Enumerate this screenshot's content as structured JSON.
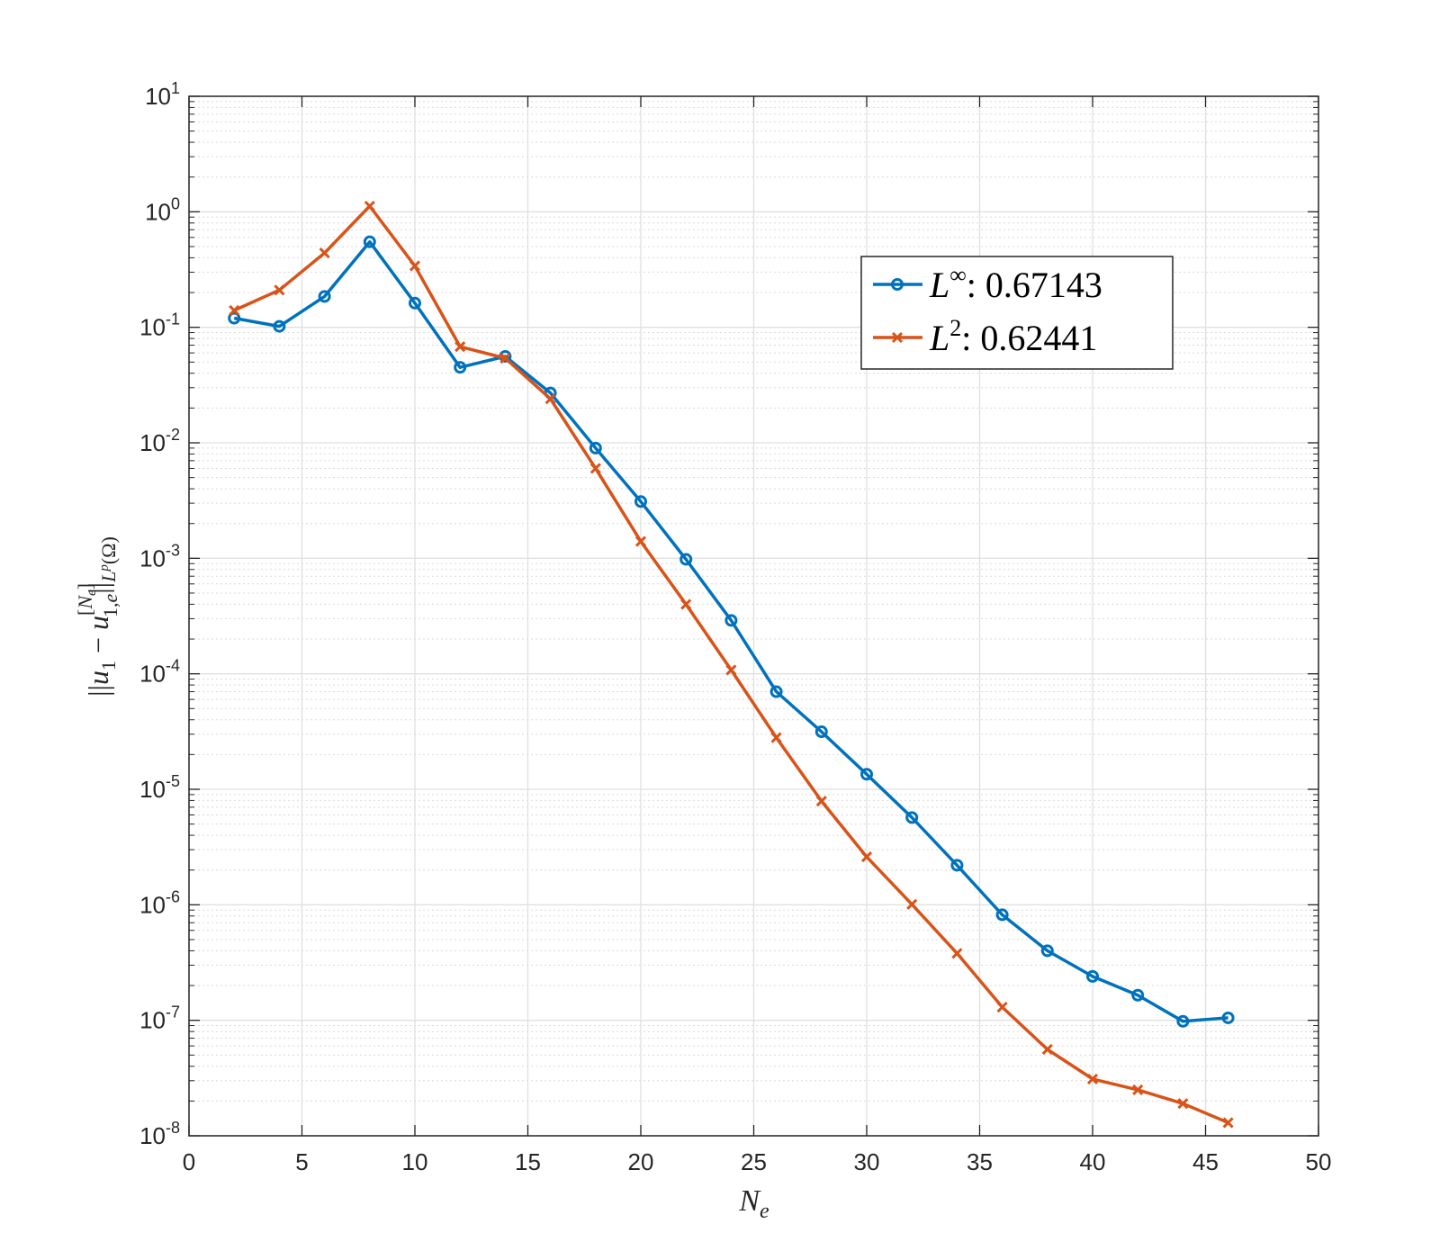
{
  "chart_data": {
    "type": "line",
    "title": "",
    "xlabel": "N_e",
    "ylabel": "||u_1 - u_{1,e}^{[N_e]}||_{L^p(Ω)}",
    "xlim": [
      0,
      50
    ],
    "ylim_log10": [
      -8,
      1
    ],
    "yscale": "log",
    "grid": true,
    "x_ticks": [
      "0",
      "5",
      "10",
      "15",
      "20",
      "25",
      "30",
      "35",
      "40",
      "45",
      "50"
    ],
    "y_ticks": [
      {
        "base": "10",
        "exp": "1"
      },
      {
        "base": "10",
        "exp": "0"
      },
      {
        "base": "10",
        "exp": "-1"
      },
      {
        "base": "10",
        "exp": "-2"
      },
      {
        "base": "10",
        "exp": "-3"
      },
      {
        "base": "10",
        "exp": "-4"
      },
      {
        "base": "10",
        "exp": "-5"
      },
      {
        "base": "10",
        "exp": "-6"
      },
      {
        "base": "10",
        "exp": "-7"
      },
      {
        "base": "10",
        "exp": "-8"
      }
    ],
    "legend_position": "top-right (inside)",
    "series": [
      {
        "name": "L^∞: 0.67143",
        "legend_base": "L",
        "legend_sup": "∞",
        "legend_value": ": 0.67143",
        "color": "#0072BD",
        "marker": "circle",
        "x": [
          2,
          4,
          6,
          8,
          10,
          12,
          14,
          16,
          18,
          20,
          22,
          24,
          26,
          28,
          30,
          32,
          34,
          36,
          38,
          40,
          42,
          44,
          46
        ],
        "y": [
          0.12,
          0.102,
          0.185,
          0.55,
          0.162,
          0.045,
          0.056,
          0.027,
          0.009,
          0.0031,
          0.00098,
          0.00029,
          7e-05,
          3.15e-05,
          1.35e-05,
          5.7e-06,
          2.2e-06,
          8.2e-07,
          4e-07,
          2.4e-07,
          1.65e-07,
          9.8e-08,
          1.05e-07
        ]
      },
      {
        "name": "L^2: 0.62441",
        "legend_base": "L",
        "legend_sup": "2",
        "legend_value": ": 0.62441",
        "color": "#D95319",
        "marker": "x",
        "x": [
          2,
          4,
          6,
          8,
          10,
          12,
          14,
          16,
          18,
          20,
          22,
          24,
          26,
          28,
          30,
          32,
          34,
          36,
          38,
          40,
          42,
          44,
          46
        ],
        "y": [
          0.14,
          0.21,
          0.44,
          1.12,
          0.34,
          0.068,
          0.054,
          0.024,
          0.006,
          0.0014,
          0.0004,
          0.000108,
          2.8e-05,
          7.9e-06,
          2.6e-06,
          1.01e-06,
          3.8e-07,
          1.3e-07,
          5.6e-08,
          3.1e-08,
          2.5e-08,
          1.9e-08,
          1.3e-08
        ]
      }
    ]
  }
}
